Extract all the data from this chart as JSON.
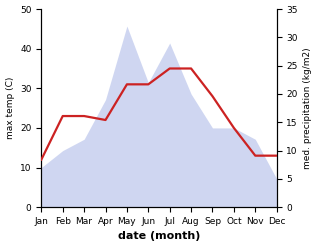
{
  "months": [
    "Jan",
    "Feb",
    "Mar",
    "Apr",
    "May",
    "Jun",
    "Jul",
    "Aug",
    "Sep",
    "Oct",
    "Nov",
    "Dec"
  ],
  "max_temp": [
    12,
    23,
    23,
    22,
    31,
    31,
    35,
    35,
    28,
    20,
    13,
    13
  ],
  "precipitation": [
    7,
    10,
    12,
    19,
    32,
    22,
    29,
    20,
    14,
    14,
    12,
    5
  ],
  "temp_ylim": [
    0,
    50
  ],
  "precip_ylim": [
    0,
    35
  ],
  "temp_yticks": [
    0,
    10,
    20,
    30,
    40,
    50
  ],
  "precip_yticks": [
    0,
    5,
    10,
    15,
    20,
    25,
    30,
    35
  ],
  "ylabel_left": "max temp (C)",
  "ylabel_right": "med. precipitation (kg/m2)",
  "xlabel": "date (month)",
  "fill_color": "#b0bce8",
  "line_color": "#cc2222",
  "line_width": 1.6,
  "bg_color": "#ffffff"
}
